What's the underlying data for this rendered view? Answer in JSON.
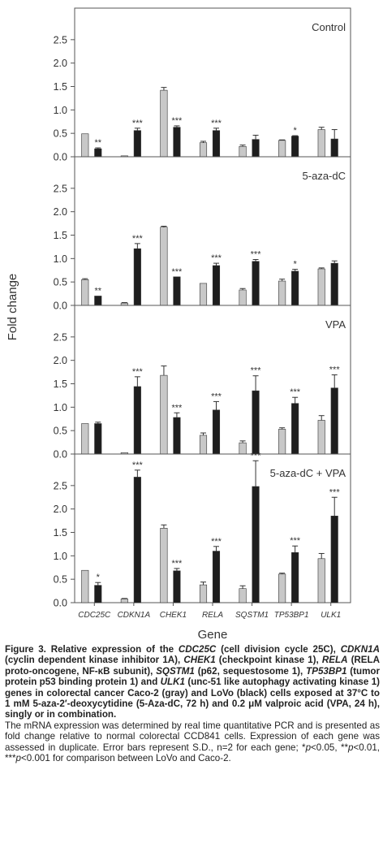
{
  "chart_data": {
    "type": "bar",
    "categories": [
      "CDC25C",
      "CDKN1A",
      "CHEK1",
      "RELA",
      "SQSTM1",
      "TP53BP1",
      "ULK1"
    ],
    "xlabel": "Gene",
    "ylabel": "Fold change",
    "ylim": [
      0,
      3.0
    ],
    "yticks": [
      "0.0",
      "0.5",
      "1.0",
      "1.5",
      "2.0",
      "2.5"
    ],
    "colors": {
      "caco2": "#c8c8c8",
      "lovo": "#1e1e1e"
    },
    "panels": [
      {
        "label": "Control",
        "caco2": [
          0.49,
          0.02,
          1.42,
          0.3,
          0.22,
          0.35,
          0.58
        ],
        "caco2_err": [
          0.0,
          0.0,
          0.06,
          0.03,
          0.03,
          0.01,
          0.05
        ],
        "lovo": [
          0.17,
          0.56,
          0.63,
          0.56,
          0.37,
          0.44,
          0.38
        ],
        "lovo_err": [
          0.02,
          0.05,
          0.03,
          0.05,
          0.09,
          0.01,
          0.2
        ],
        "sig": [
          "**",
          "***",
          "***",
          "***",
          "",
          "*",
          ""
        ]
      },
      {
        "label": "5-aza-dC",
        "caco2": [
          0.55,
          0.05,
          1.67,
          0.47,
          0.33,
          0.52,
          0.78
        ],
        "caco2_err": [
          0.02,
          0.01,
          0.02,
          0.0,
          0.03,
          0.04,
          0.02
        ],
        "lovo": [
          0.2,
          1.21,
          0.61,
          0.85,
          0.94,
          0.73,
          0.9
        ],
        "lovo_err": [
          0.0,
          0.11,
          0.0,
          0.05,
          0.04,
          0.04,
          0.05
        ],
        "sig": [
          "**",
          "***",
          "***",
          "***",
          "***",
          "*",
          ""
        ]
      },
      {
        "label": "VPA",
        "caco2": [
          0.65,
          0.03,
          1.68,
          0.4,
          0.24,
          0.53,
          0.72
        ],
        "caco2_err": [
          0.0,
          0.0,
          0.2,
          0.05,
          0.04,
          0.03,
          0.1
        ],
        "lovo": [
          0.65,
          1.44,
          0.78,
          0.94,
          1.35,
          1.08,
          1.41
        ],
        "lovo_err": [
          0.03,
          0.21,
          0.1,
          0.18,
          0.32,
          0.13,
          0.28
        ],
        "sig": [
          "",
          "***",
          "***",
          "***",
          "***",
          "***",
          "***"
        ]
      },
      {
        "label": "5-aza-dC + VPA",
        "caco2": [
          0.69,
          0.08,
          1.59,
          0.38,
          0.3,
          0.61,
          0.94
        ],
        "caco2_err": [
          0.0,
          0.01,
          0.07,
          0.06,
          0.06,
          0.02,
          0.11
        ],
        "lovo": [
          0.37,
          2.68,
          0.68,
          1.1,
          2.48,
          1.07,
          1.85
        ],
        "lovo_err": [
          0.06,
          0.15,
          0.05,
          0.1,
          0.55,
          0.14,
          0.4
        ],
        "sig": [
          "*",
          "***",
          "***",
          "***",
          "***",
          "***",
          "***"
        ]
      }
    ]
  },
  "caption": {
    "figure_label": "Figure 3. ",
    "bold_runs": [
      {
        "t": "Relative expression of the ",
        "i": false
      },
      {
        "t": "CDC25C",
        "i": true
      },
      {
        "t": " (cell division cycle 25C), ",
        "i": false
      },
      {
        "t": "CDKN1A",
        "i": true
      },
      {
        "t": " (cyclin dependent kinase inhibitor 1A), ",
        "i": false
      },
      {
        "t": "CHEK1",
        "i": true
      },
      {
        "t": " (checkpoint kinase 1), ",
        "i": false
      },
      {
        "t": "RELA",
        "i": true
      },
      {
        "t": " (RELA proto-oncogene, NF-κB subunit), ",
        "i": false
      },
      {
        "t": "SQSTM1",
        "i": true
      },
      {
        "t": " (p62, sequestosome 1), ",
        "i": false
      },
      {
        "t": "TP53BP1",
        "i": true
      },
      {
        "t": " (tumor protein p53 binding protein 1) and ",
        "i": false
      },
      {
        "t": "ULK1",
        "i": true
      },
      {
        "t": " (unc-51 like autophagy activating kinase 1) genes in colorectal cancer Caco-2 (gray) and LoVo (black) cells exposed at 37°C to 1 mM 5-aza-2′-deoxycytidine (5-Aza-dC, 72 h) and 0.2 μM valproic acid (VPA, 24 h), singly or in combination.",
        "i": false
      }
    ],
    "body_runs": [
      {
        "t": "The mRNA expression was determined by real time quantitative PCR and is presented as fold change relative to normal colorectal CCD841 cells. Expression of each gene was assessed in duplicate. Error bars represent S.D., n=2 for each gene; *",
        "i": false
      },
      {
        "t": "p",
        "i": true
      },
      {
        "t": "<0.05, **",
        "i": false
      },
      {
        "t": "p",
        "i": true
      },
      {
        "t": "<0.01, ***",
        "i": false
      },
      {
        "t": "p",
        "i": true
      },
      {
        "t": "<0.001 for comparison between LoVo and Caco-2.",
        "i": false
      }
    ]
  }
}
